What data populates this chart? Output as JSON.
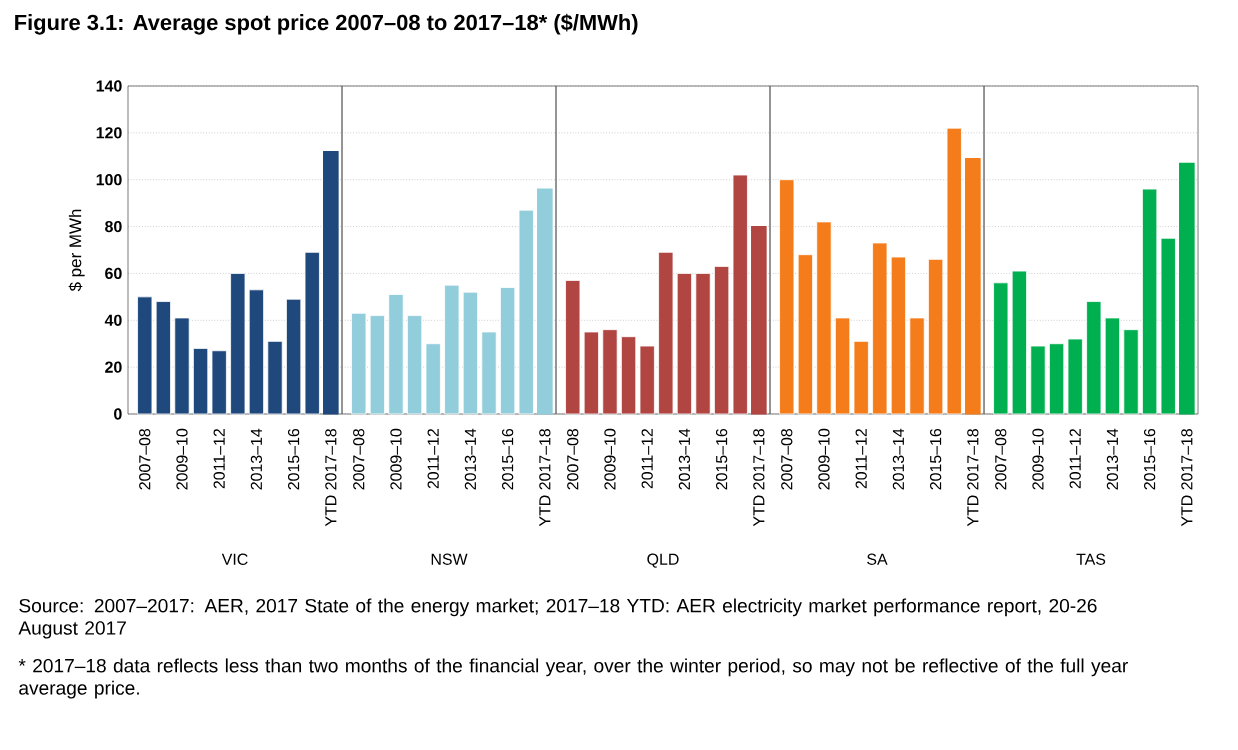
{
  "chart_data": [
    {
      "type": "bar",
      "title": "Figure 3.1: Average spot price 2007–08 to 2017–18* ($/MWh)",
      "xlabel": "VIC",
      "ylabel": "$ per MWh",
      "categories": [
        "2007–08",
        null,
        "2009–10",
        null,
        "2011–12",
        null,
        "2013–14",
        null,
        "2015–16",
        null,
        "YTD 2017–18"
      ],
      "series": [
        {
          "color": "#1f497d",
          "values": [
            50,
            48,
            41,
            28,
            27,
            60,
            53,
            31,
            49,
            69,
            null
          ]
        },
        {
          "color": "#1f497d",
          "values": [
            null,
            null,
            null,
            null,
            null,
            null,
            null,
            null,
            null,
            null,
            112
          ]
        }
      ],
      "ylim": [
        0,
        140
      ],
      "yticks": [
        0,
        20,
        40,
        60,
        80,
        100,
        120,
        140
      ],
      "grid": "y",
      "annotations": [
        "Source: 2007–2017: AER, 2017 State of the energy market; 2017–18 YTD: AER electricity market performance report, 20-26 August 2017",
        "* 2017–18 data reflects less than two months of the financial year, over the winter period, so may not be reflective of the full year average price."
      ]
    },
    {
      "type": "bar",
      "xlabel": "NSW",
      "tick_labels": "x",
      "categories": [
        "2007–08",
        null,
        "2009–10",
        null,
        "2011–12",
        null,
        "2013–14",
        null,
        "2015–16",
        null,
        "YTD 2017–18"
      ],
      "series": [
        {
          "color": "#92cddc",
          "values": [
            43,
            42,
            51,
            42,
            30,
            55,
            52,
            35,
            54,
            87,
            null
          ]
        },
        {
          "color": "#92cddc",
          "values": [
            null,
            null,
            null,
            null,
            null,
            null,
            null,
            null,
            null,
            null,
            96
          ]
        }
      ],
      "ylim": [
        0,
        140
      ],
      "yticks": [
        0,
        20,
        40,
        60,
        80,
        100,
        120,
        140
      ],
      "grid": "y"
    },
    {
      "type": "bar",
      "xlabel": "QLD",
      "tick_labels": "x",
      "categories": [
        "2007–08",
        null,
        "2009–10",
        null,
        "2011–12",
        null,
        "2013–14",
        null,
        "2015–16",
        null,
        "YTD 2017–18"
      ],
      "series": [
        {
          "color": "#b04542",
          "values": [
            57,
            35,
            36,
            33,
            29,
            69,
            60,
            60,
            63,
            102,
            null
          ]
        },
        {
          "color": "#b04542",
          "values": [
            null,
            null,
            null,
            null,
            null,
            null,
            null,
            null,
            null,
            null,
            80
          ]
        }
      ],
      "ylim": [
        0,
        140
      ],
      "yticks": [
        0,
        20,
        40,
        60,
        80,
        100,
        120,
        140
      ],
      "grid": "y"
    },
    {
      "type": "bar",
      "xlabel": "SA",
      "tick_labels": "x",
      "categories": [
        "2007–08",
        null,
        "2009–10",
        null,
        "2011–12",
        null,
        "2013–14",
        null,
        "2015–16",
        null,
        "YTD 2017–18"
      ],
      "series": [
        {
          "color": "#f57c1a",
          "values": [
            100,
            68,
            82,
            41,
            31,
            73,
            67,
            41,
            66,
            122,
            null
          ]
        },
        {
          "color": "#f57c1a",
          "values": [
            null,
            null,
            null,
            null,
            null,
            null,
            null,
            null,
            null,
            null,
            109
          ]
        }
      ],
      "ylim": [
        0,
        140
      ],
      "yticks": [
        0,
        20,
        40,
        60,
        80,
        100,
        120,
        140
      ],
      "grid": "y"
    },
    {
      "type": "bar",
      "xlabel": "TAS",
      "tick_labels": "x",
      "categories": [
        "2007–08",
        null,
        "2009–10",
        null,
        "2011–12",
        null,
        "2013–14",
        null,
        "2015–16",
        null,
        "YTD 2017–18"
      ],
      "series": [
        {
          "color": "#00b050",
          "values": [
            56,
            61,
            29,
            30,
            32,
            48,
            41,
            36,
            96,
            75,
            null
          ]
        },
        {
          "color": "#00b050",
          "values": [
            null,
            null,
            null,
            null,
            null,
            null,
            null,
            null,
            null,
            null,
            107
          ]
        }
      ],
      "ylim": [
        0,
        140
      ],
      "yticks": [
        0,
        20,
        40,
        60,
        80,
        100,
        120,
        140
      ],
      "grid": "y"
    }
  ]
}
